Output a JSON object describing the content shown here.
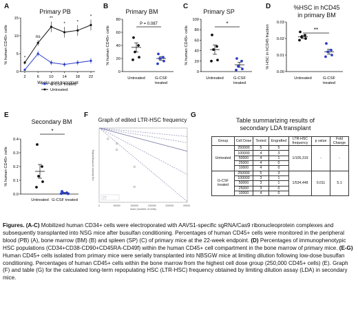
{
  "panels": {
    "A": {
      "letter": "A",
      "title": "Primary PB",
      "ylabel": "% human CD45+ cells",
      "xlabel": "Weeks post-transplant",
      "yticks": [
        "15",
        "10",
        "5",
        "0"
      ],
      "xticks": [
        "2",
        "6",
        "10",
        "14",
        "18",
        "22"
      ],
      "sig": [
        "*",
        "ns",
        "**",
        "*",
        "*",
        "*"
      ],
      "legend": [
        "G-CSF treated",
        "Untreated"
      ]
    },
    "B": {
      "letter": "B",
      "title": "Primary BM",
      "ylabel": "% human CD45+ cells",
      "yticks": [
        "80",
        "60",
        "40",
        "20",
        "0"
      ],
      "xticks": [
        "Untreated",
        "G-CSF",
        "treated"
      ],
      "pval": "P = 0.087"
    },
    "C": {
      "letter": "C",
      "title": "Primary SP",
      "ylabel": "% human CD45+ cells",
      "yticks": [
        "100",
        "80",
        "60",
        "40",
        "20",
        "0"
      ],
      "xticks": [
        "Untreated",
        "G-CSF",
        "treated"
      ],
      "sig": "*"
    },
    "D": {
      "letter": "D",
      "title": "%HSC in hCD45",
      "title2": "in primary BM",
      "ylabel": "% HSC in hCD45 fraction",
      "yticks": [
        "0.03",
        "0.02",
        "0.01",
        "0.00"
      ],
      "xticks": [
        "Untreated",
        "G-CSF",
        "treated"
      ],
      "sig": "**"
    },
    "E": {
      "letter": "E",
      "title": "Secondary BM",
      "ylabel": "% human CD45+ cells",
      "yticks": [
        "0.4",
        "0.3",
        "0.2",
        "0.1",
        "0.0"
      ],
      "xticks": [
        "Untreated",
        "G-CSF treated"
      ],
      "sig": "*"
    },
    "F": {
      "letter": "F",
      "title": "Graph of edited LTR-HSC frequency",
      "ylabel": "log fraction nonresponding",
      "xlabel": "dose (number of cells)",
      "xticks": [
        "0",
        "50000",
        "100000",
        "150000",
        "200000",
        "250000"
      ]
    },
    "G": {
      "letter": "G",
      "title": "Table summarizing results of",
      "title2": "secondary LDA transplant"
    }
  },
  "table": {
    "headers": [
      "Group",
      "Cell Dose",
      "Tested",
      "Engrafted",
      "LTR-HSC frequency",
      "p value",
      "Fold Change"
    ],
    "groups": [
      {
        "name": "Untreated",
        "frequency": "1/105,319",
        "p": "-",
        "fold": "-",
        "rows": [
          [
            "250000",
            "5",
            "5"
          ],
          [
            "100000",
            "4",
            "3"
          ],
          [
            "50000",
            "4",
            "1"
          ],
          [
            "25000",
            "4",
            "0"
          ],
          [
            "10000",
            "4",
            "0"
          ]
        ]
      },
      {
        "name": "G-CSF treated",
        "frequency": "1/534,448",
        "p": "0.011",
        "fold": "5.1",
        "rows": [
          [
            "250000",
            "5",
            "3"
          ],
          [
            "100000",
            "3",
            "1"
          ],
          [
            "50000",
            "3",
            "1"
          ],
          [
            "25000",
            "3",
            "0"
          ],
          [
            "10000",
            "4",
            "0"
          ]
        ]
      }
    ]
  },
  "chart_data": [
    {
      "panel": "A",
      "type": "line",
      "title": "Primary PB",
      "xlabel": "Weeks post-transplant",
      "ylabel": "% human CD45+ cells",
      "x": [
        2,
        6,
        10,
        14,
        18,
        22
      ],
      "ylim": [
        0,
        15
      ],
      "series": [
        {
          "name": "G-CSF treated",
          "values": [
            0.5,
            5,
            2.5,
            2,
            2.5,
            3
          ],
          "err": [
            0.2,
            0.8,
            0.7,
            0.6,
            0.7,
            0.8
          ]
        },
        {
          "name": "Untreated",
          "values": [
            2.5,
            8,
            12.5,
            11,
            11.5,
            13
          ],
          "err": [
            0.5,
            0.8,
            1.5,
            1.5,
            1.5,
            1.5
          ]
        }
      ]
    },
    {
      "panel": "B",
      "type": "scatter",
      "title": "Primary BM",
      "ylabel": "% human CD45+ cells",
      "ylim": [
        0,
        80
      ],
      "categories": [
        "Untreated",
        "G-CSF treated"
      ],
      "series": [
        {
          "points": [
            52,
            40,
            30,
            22,
            18
          ],
          "mean": 37,
          "sem": 7
        },
        {
          "points": [
            27,
            22,
            20,
            16,
            12
          ],
          "mean": 20,
          "sem": 3
        }
      ]
    },
    {
      "panel": "C",
      "type": "scatter",
      "title": "Primary SP",
      "ylabel": "% human CD45+ cells",
      "ylim": [
        0,
        100
      ],
      "categories": [
        "Untreated",
        "G-CSF treated"
      ],
      "series": [
        {
          "points": [
            70,
            48,
            42,
            22,
            20
          ],
          "mean": 42,
          "sem": 9
        },
        {
          "points": [
            25,
            20,
            10,
            5,
            3
          ],
          "mean": 13,
          "sem": 5
        }
      ]
    },
    {
      "panel": "D",
      "type": "scatter",
      "title": "%HSC in hCD45 in primary BM",
      "ylabel": "% HSC in hCD45 fraction",
      "ylim": [
        0,
        0.03
      ],
      "categories": [
        "Untreated",
        "G-CSF treated"
      ],
      "series": [
        {
          "points": [
            0.024,
            0.022,
            0.021,
            0.02,
            0.019
          ],
          "mean": 0.021,
          "sem": 0.001
        },
        {
          "points": [
            0.017,
            0.013,
            0.012,
            0.01,
            0.009
          ],
          "mean": 0.012,
          "sem": 0.0015
        }
      ]
    },
    {
      "panel": "E",
      "type": "scatter",
      "title": "Secondary BM",
      "ylabel": "% human CD45+ cells",
      "ylim": [
        0,
        0.4
      ],
      "categories": [
        "Untreated",
        "G-CSF treated"
      ],
      "series": [
        {
          "points": [
            0.36,
            0.2,
            0.13,
            0.09,
            0.05
          ],
          "mean": 0.165,
          "sem": 0.05
        },
        {
          "points": [
            0.02,
            0.01,
            0.008,
            0.005,
            0.003,
            0.002
          ],
          "mean": 0.008,
          "sem": 0.003
        }
      ]
    },
    {
      "panel": "F",
      "type": "line",
      "title": "Graph of edited LTR-HSC frequency",
      "xlabel": "dose (number of cells)",
      "ylabel": "log fraction nonresponding",
      "xlim": [
        0,
        250000
      ],
      "series": [
        {
          "slope": -9.5e-06,
          "color": "#8a8ab8"
        },
        {
          "slope": -6e-06,
          "color": "#8a8ab8"
        },
        {
          "slope": -3e-06,
          "color": "#6a6a9a"
        },
        {
          "slope": -1.9e-06,
          "color": "#8a8ab8"
        },
        {
          "slope": -1.1e-06,
          "color": "#8a8ab8"
        }
      ],
      "points": [
        [
          25000,
          -0.35
        ],
        [
          50000,
          -0.7
        ],
        [
          100000,
          -1.25
        ],
        [
          100000,
          -1.9
        ],
        [
          50000,
          -0.5
        ]
      ]
    }
  ],
  "caption": {
    "lead": "Figures.",
    "a_c_tag": "(A-C)",
    "a_c_text": "Mobilized human CD34+ cells were electroporated with AAVS1-specific sgRNA/Cas9 ribonucleoprotein complexes and subsequently transplanted into NSG mice after busulfan conditioning. Percentages of human CD45+ cells were monitored in the peripheral blood (PB) (A), bone marrow (BM) (B) and spleen (SP) (C) of primary mice at the 22-week endpoint.",
    "d_tag": "(D)",
    "d_text": "Percentages of immunophenotypic HSC populations (CD34+CD38-CD90+CD45RA-CD49f) within the human CD45+ cell compartment in the bone marrow of primary mice.",
    "e_g_tag": "(E-G)",
    "e_g_text": "Human CD45+ cells isolated from primary mice were serially transplanted into NBSGW mice at limiting dilution following low-dose busulfan conditioning. Percentages of human CD45+ cells within the bone marrow from the highest cell dose group (250,000 CD45+ cells) (E). Graph (F) and table (G) for the calculated long-term repopulating HSC (LTR-HSC) frequency obtained by limiting dilution assay (LDA) in secondary mice."
  },
  "colors": {
    "gcsf": "#2b3ec8",
    "untreated": "#111111"
  }
}
